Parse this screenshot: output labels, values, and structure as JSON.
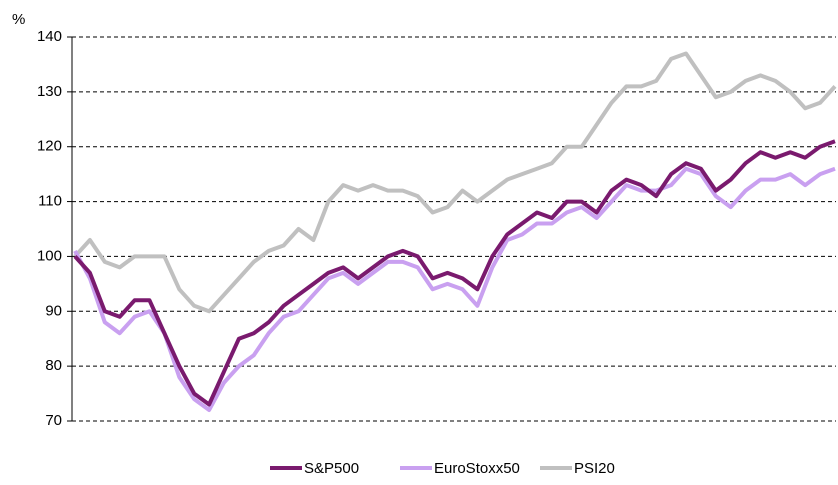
{
  "chart_data": {
    "type": "line",
    "y_label": "%",
    "categories": [
      null,
      null,
      null,
      null,
      null,
      null,
      null,
      null,
      null,
      null,
      null,
      null,
      null,
      null,
      null,
      null,
      null,
      null,
      null,
      null,
      null,
      null,
      null,
      null,
      null,
      null,
      null,
      null,
      null,
      null,
      null,
      null,
      null,
      null,
      null,
      null,
      null,
      null,
      null,
      null,
      null,
      null,
      null,
      null,
      null,
      null,
      null,
      null,
      null,
      null,
      null,
      null
    ],
    "series": [
      {
        "name": "S&P500",
        "color": "#7a1a6e",
        "values": [
          100,
          97,
          90,
          89,
          92,
          92,
          86,
          80,
          75,
          73,
          79,
          85,
          86,
          88,
          91,
          93,
          95,
          97,
          98,
          96,
          98,
          100,
          101,
          100,
          96,
          97,
          96,
          94,
          100,
          104,
          106,
          108,
          107,
          110,
          110,
          108,
          112,
          114,
          113,
          111,
          115,
          117,
          116,
          112,
          114,
          117,
          119,
          118,
          119,
          118,
          120,
          121
        ]
      },
      {
        "name": "EuroStoxx50",
        "color": "#c9a0f0",
        "values": [
          101,
          96,
          88,
          86,
          89,
          90,
          86,
          78,
          74,
          72,
          77,
          80,
          82,
          86,
          89,
          90,
          93,
          96,
          97,
          95,
          97,
          99,
          99,
          98,
          94,
          95,
          94,
          91,
          98,
          103,
          104,
          106,
          106,
          108,
          109,
          107,
          110,
          113,
          112,
          112,
          113,
          116,
          115,
          111,
          109,
          112,
          114,
          114,
          115,
          113,
          115,
          116
        ]
      },
      {
        "name": "PSI20",
        "color": "#c0c0c0",
        "values": [
          100,
          103,
          99,
          98,
          100,
          100,
          100,
          94,
          91,
          90,
          93,
          96,
          99,
          101,
          102,
          105,
          103,
          110,
          113,
          112,
          113,
          112,
          112,
          111,
          108,
          109,
          112,
          110,
          112,
          114,
          115,
          116,
          117,
          120,
          120,
          124,
          128,
          131,
          131,
          132,
          136,
          137,
          133,
          129,
          130,
          132,
          133,
          132,
          130,
          127,
          128,
          131
        ]
      }
    ],
    "ylim": [
      70,
      140
    ],
    "yticks": [
      70,
      80,
      90,
      100,
      110,
      120,
      130,
      140
    ],
    "grid": true,
    "legend": "bottom"
  }
}
